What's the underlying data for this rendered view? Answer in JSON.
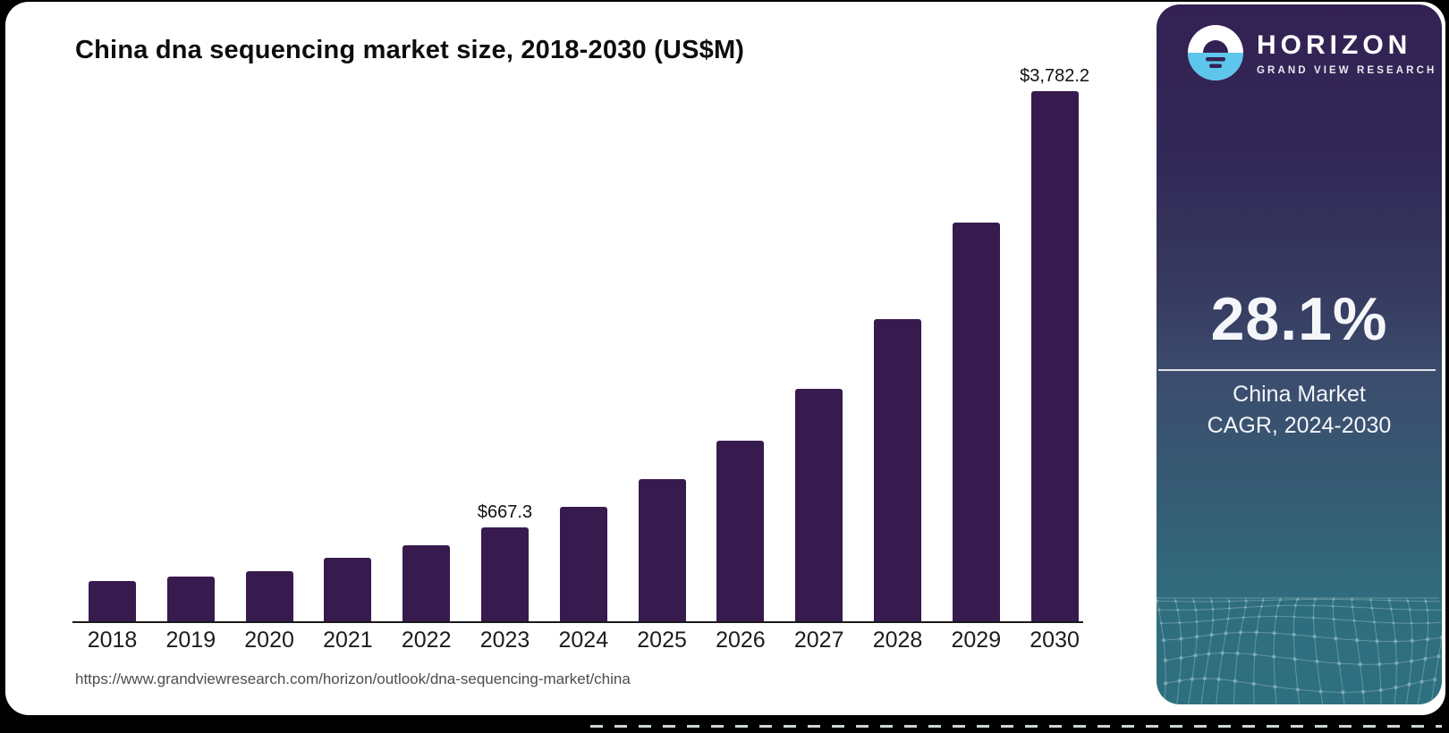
{
  "page": {
    "background_color": "#000000",
    "card_color": "#ffffff"
  },
  "chart": {
    "title": "China dna sequencing market size, 2018-2030 (US$M)"
  },
  "chart_data": {
    "type": "bar",
    "title": "China dna sequencing market size, 2018-2030 (US$M)",
    "categories": [
      "2018",
      "2019",
      "2020",
      "2021",
      "2022",
      "2023",
      "2024",
      "2025",
      "2026",
      "2027",
      "2028",
      "2029",
      "2030"
    ],
    "values": [
      290,
      320,
      360,
      455,
      545,
      667.3,
      815,
      1015,
      1290,
      1660,
      2155,
      2845,
      3782.2
    ],
    "value_labels": [
      "",
      "",
      "",
      "",
      "",
      "$667.3",
      "",
      "",
      "",
      "",
      "",
      "",
      "$3,782.2"
    ],
    "unit": "US$M",
    "ylim": [
      0,
      3900
    ],
    "bar_color": "#371a4e",
    "gridlines": false,
    "legend": "none",
    "x_axis_line_color": "#1a1a1a"
  },
  "footer": {
    "source_url": "https://www.grandviewresearch.com/horizon/outlook/dna-sequencing-market/china"
  },
  "sidebar": {
    "brand_name": "HORIZON",
    "brand_subtitle": "GRAND VIEW RESEARCH",
    "logo_icon": "horizon-sunset-circle-icon",
    "stat_value": "28.1%",
    "stat_label_line1": "China Market",
    "stat_label_line2": "CAGR, 2024-2030",
    "colors": {
      "panel_top": "#332153",
      "panel_mid": "#3c4c6d",
      "panel_bottom": "#2f7080",
      "logo_blue": "#5ec5ec",
      "mesh_line": "#9ec3cb"
    }
  }
}
